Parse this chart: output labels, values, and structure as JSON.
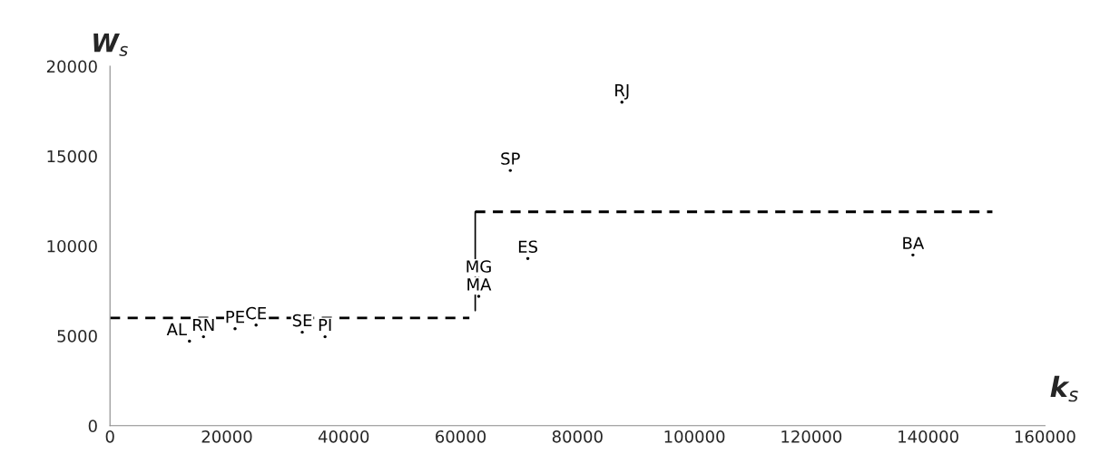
{
  "chart_data": {
    "type": "scatter",
    "xlabel": "k$_{s}$",
    "ylabel": "W$_{s}$",
    "xlim": [
      0,
      160000
    ],
    "xticks": [
      0,
      20000,
      40000,
      60000,
      80000,
      100000,
      120000,
      140000,
      160000
    ],
    "ylim": [
      0,
      20000
    ],
    "yticks": [
      0,
      5000,
      10000,
      15000,
      20000
    ],
    "grid": false,
    "legend": false,
    "series": [
      {
        "marker": "circle",
        "color": "#000000",
        "x": [
          13600,
          16000,
          21400,
          25000,
          32900,
          36800,
          63100,
          63100,
          71500,
          68500,
          87600,
          137400
        ],
        "values": [
          4700,
          4950,
          5400,
          5600,
          5200,
          4950,
          8200,
          7200,
          9300,
          14200,
          18000,
          9500
        ],
        "value_labels": [
          "AL",
          "RN",
          "PE",
          "CE",
          "SE",
          "PI",
          "MG",
          "MA",
          "ES",
          "SP",
          "RJ",
          "BA"
        ]
      },
      {
        "type": "line",
        "line_style": "dashed",
        "color": "#000000",
        "x": [
          0,
          61500
        ],
        "values": [
          6000,
          6000
        ]
      },
      {
        "type": "line",
        "line_style": "dashed",
        "color": "#000000",
        "x": [
          62500,
          151000
        ],
        "values": [
          11900,
          11900
        ]
      },
      {
        "type": "line",
        "line_style": "solid",
        "color": "#000000",
        "x": [
          62500,
          62500
        ],
        "values": [
          6400,
          11900
        ]
      }
    ]
  }
}
